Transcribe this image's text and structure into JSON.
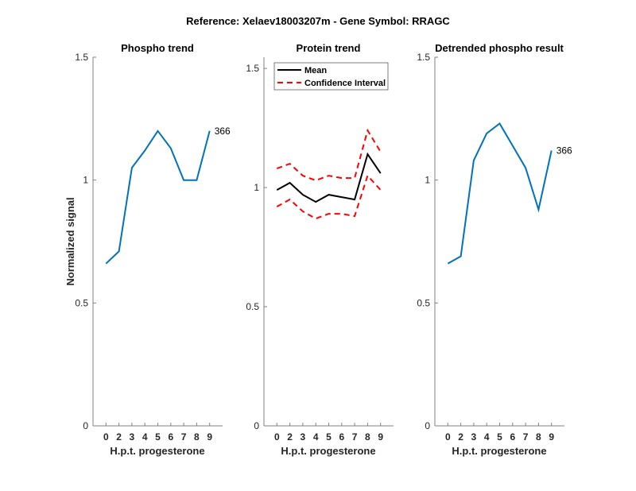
{
  "suptitle": "Reference:  Xelaev18003207m - Gene Symbol:  RRAGC",
  "colors": {
    "phospho": "#0072BD",
    "mean": "#000000",
    "ci": "#FF0000",
    "axis": "#808080"
  },
  "chart_data": [
    {
      "type": "line",
      "title": "Phospho trend",
      "xlabel": "H.p.t. progesterone",
      "ylabel": "Normalized signal",
      "categories": [
        "0",
        "2",
        "3",
        "4",
        "5",
        "6",
        "7",
        "8",
        "9"
      ],
      "ylim": [
        0,
        1.5
      ],
      "yticks": [
        0,
        0.5,
        1,
        1.5
      ],
      "ytick_labels": [
        "0",
        "0.5",
        "1",
        "1.5"
      ],
      "grid": false,
      "series": [
        {
          "name": "366",
          "values": [
            0.66,
            0.71,
            1.05,
            1.12,
            1.2,
            1.13,
            1.0,
            1.0,
            1.2
          ]
        }
      ],
      "annotations": [
        {
          "text": "366",
          "at_category": "9"
        }
      ]
    },
    {
      "type": "line",
      "title": "Protein trend",
      "xlabel": "H.p.t. progesterone",
      "ylabel": "",
      "categories": [
        "0",
        "2",
        "3",
        "4",
        "5",
        "6",
        "7",
        "8",
        "9"
      ],
      "ylim": [
        0,
        1.547
      ],
      "yticks": [
        0,
        0.5,
        1,
        1.5
      ],
      "ytick_labels": [
        "0",
        "0.5",
        "1",
        "1.5"
      ],
      "grid": false,
      "legend": {
        "placement": "top-left",
        "entries": [
          "Mean",
          "Confidence Interval"
        ]
      },
      "series": [
        {
          "name": "Mean",
          "style": "solid",
          "values": [
            0.99,
            1.02,
            0.97,
            0.94,
            0.97,
            0.96,
            0.95,
            1.14,
            1.06
          ]
        },
        {
          "name": "Confidence Interval (upper)",
          "style": "dashed",
          "values": [
            1.08,
            1.1,
            1.05,
            1.03,
            1.05,
            1.04,
            1.04,
            1.24,
            1.15
          ]
        },
        {
          "name": "Confidence Interval (lower)",
          "style": "dashed",
          "values": [
            0.92,
            0.95,
            0.9,
            0.87,
            0.89,
            0.89,
            0.88,
            1.05,
            0.99
          ]
        }
      ]
    },
    {
      "type": "line",
      "title": "Detrended phospho result",
      "xlabel": "H.p.t. progesterone",
      "ylabel": "",
      "categories": [
        "0",
        "2",
        "3",
        "4",
        "5",
        "6",
        "7",
        "8",
        "9"
      ],
      "ylim": [
        0,
        1.5
      ],
      "yticks": [
        0,
        0.5,
        1,
        1.5
      ],
      "ytick_labels": [
        "0",
        "0.5",
        "1",
        "1.5"
      ],
      "grid": false,
      "series": [
        {
          "name": "366",
          "values": [
            0.66,
            0.69,
            1.08,
            1.19,
            1.23,
            1.14,
            1.05,
            0.88,
            1.12
          ]
        }
      ],
      "annotations": [
        {
          "text": "366",
          "at_category": "9"
        }
      ]
    }
  ]
}
